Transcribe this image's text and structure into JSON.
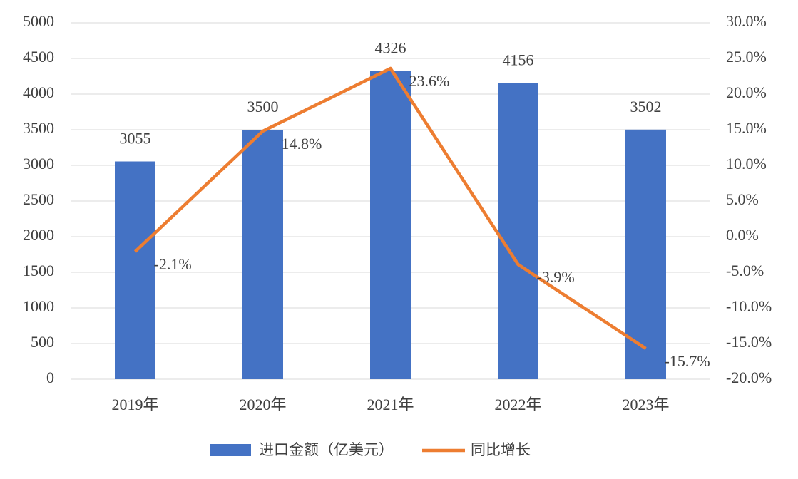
{
  "chart_data": {
    "type": "combo",
    "categories": [
      "2019年",
      "2020年",
      "2021年",
      "2022年",
      "2023年"
    ],
    "series": [
      {
        "name": "进口金额（亿美元）",
        "type": "bar",
        "color": "#4472c4",
        "values": [
          3055,
          3500,
          4326,
          4156,
          3502
        ]
      },
      {
        "name": "同比增长",
        "type": "line",
        "axis": "y2",
        "color": "#ed7d31",
        "values": [
          -2.1,
          14.8,
          23.6,
          -3.9,
          -15.7
        ],
        "value_labels": [
          "-2.1%",
          "14.8%",
          "23.6%",
          "-3.9%",
          "-15.7%"
        ]
      }
    ],
    "ylim": [
      0,
      5000
    ],
    "yticks": [
      0,
      500,
      1000,
      1500,
      2000,
      2500,
      3000,
      3500,
      4000,
      4500,
      5000
    ],
    "y2lim": [
      -20,
      30
    ],
    "y2ticks": [
      {
        "value": -20,
        "label": "-20.0%"
      },
      {
        "value": -15,
        "label": "-15.0%"
      },
      {
        "value": -10,
        "label": "-10.0%"
      },
      {
        "value": -5,
        "label": "-5.0%"
      },
      {
        "value": 0,
        "label": "0.0%"
      },
      {
        "value": 5,
        "label": "5.0%"
      },
      {
        "value": 10,
        "label": "10.0%"
      },
      {
        "value": 15,
        "label": "15.0%"
      },
      {
        "value": 20,
        "label": "20.0%"
      },
      {
        "value": 25,
        "label": "25.0%"
      },
      {
        "value": 30,
        "label": "30.0%"
      }
    ],
    "grid": true,
    "legend": "bottom"
  }
}
